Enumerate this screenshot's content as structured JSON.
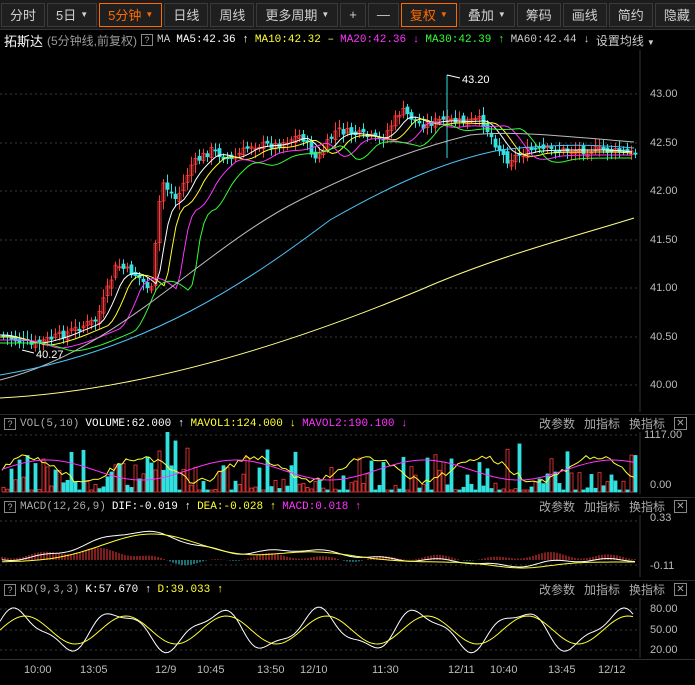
{
  "toolbar": {
    "left_tabs": [
      "分时",
      "5日",
      "5分钟",
      "日线",
      "周线",
      "更多周期"
    ],
    "active_tab": "5分钟",
    "right_buttons": [
      "+",
      "—",
      "复权",
      "叠加",
      "筹码",
      "画线",
      "简约",
      "隐藏"
    ]
  },
  "stock": {
    "name": "拓斯达",
    "subtitle": "(5分钟线,前复权)"
  },
  "ma_bar": {
    "prefix": "MA",
    "items": [
      {
        "text": "MA5:42.36",
        "arrow": "↑",
        "color": "#ffffff"
      },
      {
        "text": "MA10:42.32",
        "arrow": "–",
        "color": "#ffff33"
      },
      {
        "text": "MA20:42.36",
        "arrow": "↓",
        "color": "#ff33ff"
      },
      {
        "text": "MA30:42.39",
        "arrow": "↑",
        "color": "#33ff33"
      },
      {
        "text": "MA60:42.44",
        "arrow": "↓",
        "color": "#cccccc"
      }
    ],
    "settings_label": "设置均线"
  },
  "price_chart": {
    "y_ticks": [
      "43.00",
      "42.50",
      "42.00",
      "41.50",
      "41.00",
      "40.50",
      "40.00"
    ],
    "max_label": "43.20",
    "min_label": "40.27"
  },
  "volume_panel": {
    "label": "VOL(5,10)",
    "values": [
      {
        "text": "VOLUME:62.000",
        "arrow": "↑",
        "color": "#ffffff"
      },
      {
        "text": "MAVOL1:124.000",
        "arrow": "↓",
        "color": "#ffff33"
      },
      {
        "text": "MAVOL2:190.100",
        "arrow": "↓",
        "color": "#ff33ff"
      }
    ],
    "y_ticks": [
      "1117.00",
      "0.00"
    ]
  },
  "macd_panel": {
    "label": "MACD(12,26,9)",
    "values": [
      {
        "text": "DIF:-0.019",
        "arrow": "↑",
        "color": "#ffffff"
      },
      {
        "text": "DEA:-0.028",
        "arrow": "↑",
        "color": "#ffff33"
      },
      {
        "text": "MACD:0.018",
        "arrow": "↑",
        "color": "#ff33ff"
      }
    ],
    "y_ticks": [
      "0.33",
      "-0.11"
    ]
  },
  "kd_panel": {
    "label": "KD(9,3,3)",
    "values": [
      {
        "text": "K:57.670",
        "arrow": "↑",
        "color": "#ffffff"
      },
      {
        "text": "D:39.033",
        "arrow": "↑",
        "color": "#ffff33"
      }
    ],
    "y_ticks": [
      "80.00",
      "50.00",
      "20.00"
    ]
  },
  "panel_actions": [
    "改参数",
    "加指标",
    "换指标"
  ],
  "time_axis": [
    "10:00",
    "13:05",
    "12/9",
    "10:45",
    "13:50",
    "12/10",
    "11:30",
    "12/11",
    "10:40",
    "13:45",
    "12/12"
  ],
  "colors": {
    "up": "#ff3b3b",
    "down": "#33e0e0",
    "active": "#ff6a00",
    "ma60": "#4fc3f7",
    "ma_long": "#ffff88"
  }
}
